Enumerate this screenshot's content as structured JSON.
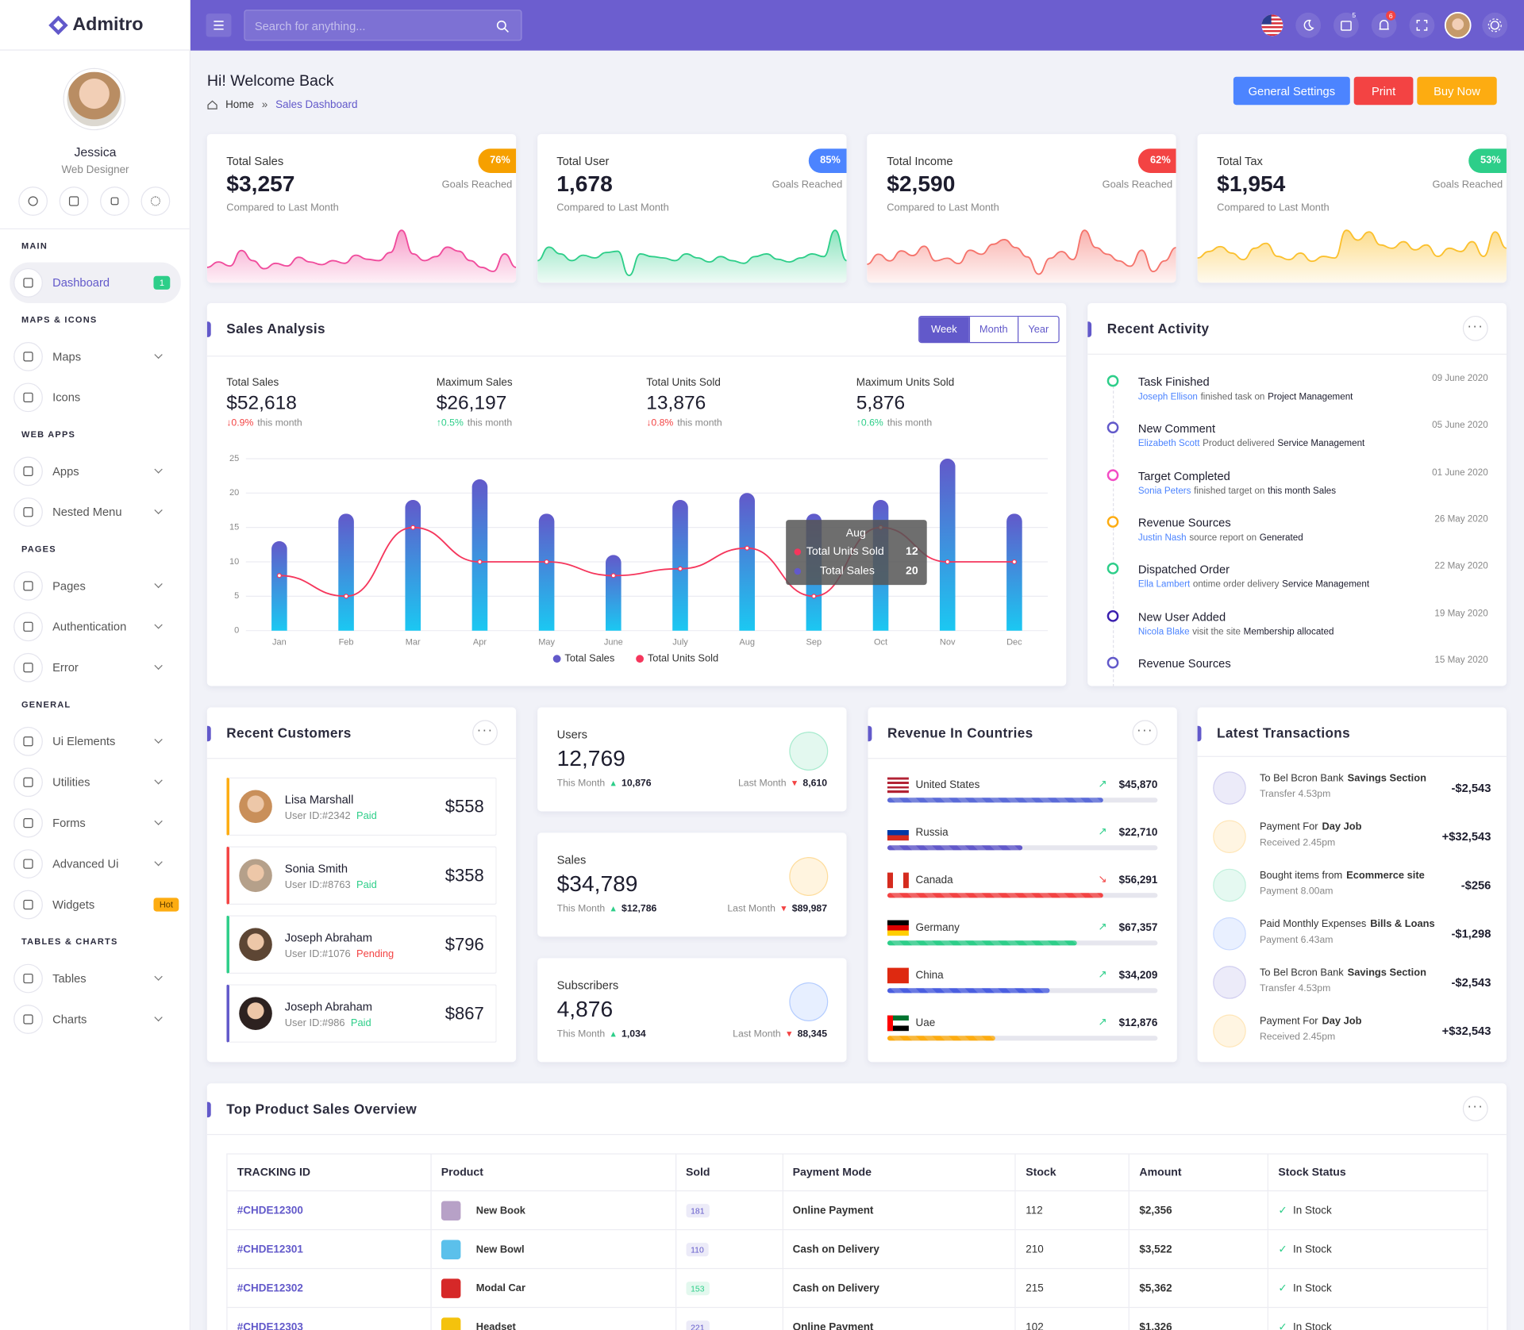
{
  "brand": "Admitro",
  "header": {
    "search_placeholder": "Search for anything...",
    "cart_count": 5,
    "notification_count": 6
  },
  "profile": {
    "name": "Jessica",
    "role": "Web Designer"
  },
  "sidebar": [
    {
      "heading": "MAIN",
      "items": [
        {
          "label": "Dashboard",
          "badge": 1,
          "badge_color": "#2dce89",
          "active": true
        }
      ]
    },
    {
      "heading": "MAPS & ICONS",
      "items": [
        {
          "label": "Maps",
          "submenu": true
        },
        {
          "label": "Icons"
        }
      ]
    },
    {
      "heading": "WEB APPS",
      "items": [
        {
          "label": "Apps",
          "submenu": true
        },
        {
          "label": "Nested Menu",
          "submenu": true
        }
      ]
    },
    {
      "heading": "PAGES",
      "items": [
        {
          "label": "Pages",
          "submenu": true
        },
        {
          "label": "Authentication",
          "submenu": true
        },
        {
          "label": "Error",
          "submenu": true
        }
      ]
    },
    {
      "heading": "GENERAL",
      "items": [
        {
          "label": "Ui Elements",
          "submenu": true
        },
        {
          "label": "Utilities",
          "submenu": true
        },
        {
          "label": "Forms",
          "submenu": true
        },
        {
          "label": "Advanced Ui",
          "submenu": true
        },
        {
          "label": "Widgets",
          "badge": "Hot",
          "badge_color": "#fdac11"
        }
      ]
    },
    {
      "heading": "TABLES & CHARTS",
      "items": [
        {
          "label": "Tables",
          "submenu": true
        },
        {
          "label": "Charts",
          "submenu": true
        }
      ]
    }
  ],
  "page": {
    "title": "Hi! Welcome Back",
    "breadcrumb": [
      "Home",
      "Sales Dashboard"
    ],
    "buttons": [
      {
        "label": "General Settings",
        "color": "#4c84ff"
      },
      {
        "label": "Print",
        "color": "#f34343"
      },
      {
        "label": "Buy Now",
        "color": "#fdac11"
      }
    ]
  },
  "stat_cards": [
    {
      "label": "Total Sales",
      "value": "$3,257",
      "badge": "76%",
      "goal": "Goals Reached",
      "note": "Compared to Last Month",
      "color": "#f6a000",
      "line_color": "#f04b9c",
      "sparkline": [
        20,
        28,
        22,
        45,
        30,
        18,
        26,
        22,
        35,
        28,
        24,
        30,
        26,
        38,
        32,
        30,
        42,
        75,
        40,
        30,
        36,
        50,
        44,
        30,
        20,
        14,
        40,
        20
      ]
    },
    {
      "label": "Total User",
      "value": "1,678",
      "badge": "85%",
      "goal": "Goals Reached",
      "note": "Compared to Last Month",
      "color": "#4c84ff",
      "line_color": "#2dce89",
      "sparkline": [
        30,
        50,
        40,
        30,
        38,
        34,
        42,
        44,
        8,
        40,
        36,
        34,
        30,
        40,
        34,
        28,
        36,
        30,
        26,
        36,
        40,
        32,
        28,
        34,
        40,
        36,
        75,
        30
      ]
    },
    {
      "label": "Total Income",
      "value": "$2,590",
      "badge": "62%",
      "goal": "Goals Reached",
      "note": "Compared to Last Month",
      "color": "#f34343",
      "line_color": "#f5736b",
      "sparkline": [
        25,
        40,
        30,
        45,
        38,
        52,
        30,
        34,
        26,
        46,
        40,
        55,
        62,
        50,
        36,
        10,
        34,
        44,
        32,
        76,
        50,
        40,
        30,
        22,
        46,
        14,
        30,
        50
      ]
    },
    {
      "label": "Total Tax",
      "value": "$1,954",
      "badge": "53%",
      "goal": "Goals Reached",
      "note": "Compared to Last Month",
      "color": "#2dce89",
      "line_color": "#fbc02d",
      "sparkline": [
        28,
        36,
        42,
        34,
        26,
        40,
        46,
        30,
        26,
        34,
        24,
        30,
        28,
        62,
        50,
        60,
        44,
        40,
        48,
        38,
        44,
        30,
        40,
        36,
        48,
        30,
        60,
        40
      ]
    }
  ],
  "sales_analysis": {
    "title": "Sales Analysis",
    "tabs": [
      "Week",
      "Month",
      "Year"
    ],
    "active_tab": 0,
    "kpis": [
      {
        "label": "Total Sales",
        "value": "$52,618",
        "change": "0.9%",
        "trend": "down",
        "note": "this month"
      },
      {
        "label": "Maximum Sales",
        "value": "$26,197",
        "change": "0.5%",
        "trend": "up",
        "note": "this month"
      },
      {
        "label": "Total Units Sold",
        "value": "13,876",
        "change": "0.8%",
        "trend": "down",
        "note": "this month"
      },
      {
        "label": "Maximum Units Sold",
        "value": "5,876",
        "change": "0.6%",
        "trend": "up",
        "note": "this month"
      }
    ]
  },
  "chart_data": {
    "type": "bar",
    "categories": [
      "Jan",
      "Feb",
      "Mar",
      "Apr",
      "May",
      "June",
      "July",
      "Aug",
      "Sep",
      "Oct",
      "Nov",
      "Dec"
    ],
    "series": [
      {
        "name": "Total Sales",
        "type": "bar",
        "color": "#6259ca",
        "values": [
          13,
          17,
          19,
          22,
          17,
          11,
          19,
          20,
          17,
          19,
          25,
          17
        ]
      },
      {
        "name": "Total Units Sold",
        "type": "line",
        "color": "#f5365c",
        "values": [
          8,
          5,
          15,
          10,
          10,
          8,
          9,
          12,
          5,
          15,
          10,
          10
        ]
      }
    ],
    "ylim": [
      0,
      25
    ],
    "yticks": [
      0,
      5,
      10,
      15,
      20,
      25
    ],
    "grid": true,
    "legend": "bottom",
    "tooltip_index": 7
  },
  "recent_activity": {
    "title": "Recent Activity",
    "items": [
      {
        "title": "Task Finished",
        "person": "Joseph Ellison",
        "text": "finished task on",
        "target": "Project Management",
        "date": "09 June 2020",
        "color": "#2dce89"
      },
      {
        "title": "New Comment",
        "person": "Elizabeth Scott",
        "text": "Product delivered",
        "target": "Service Management",
        "date": "05 June 2020",
        "color": "#6259ca"
      },
      {
        "title": "Target Completed",
        "person": "Sonia Peters",
        "text": "finished target on",
        "target": "this month Sales",
        "date": "01 June 2020",
        "color": "#f34cc4"
      },
      {
        "title": "Revenue Sources",
        "person": "Justin Nash",
        "text": "source report on",
        "target": "Generated",
        "date": "26 May 2020",
        "color": "#fdac11"
      },
      {
        "title": "Dispatched Order",
        "person": "Ella Lambert",
        "text": "ontime order delivery",
        "target": "Service Management",
        "date": "22 May 2020",
        "color": "#2dce89"
      },
      {
        "title": "New User Added",
        "person": "Nicola Blake",
        "text": "visit the site",
        "target": "Membership allocated",
        "date": "19 May 2020",
        "color": "#3a1fae"
      },
      {
        "title": "Revenue Sources",
        "date": "15 May 2020",
        "color": "#6259ca"
      }
    ]
  },
  "recent_customers": {
    "title": "Recent Customers",
    "items": [
      {
        "name": "Lisa Marshall",
        "user_id": "User ID:#2342",
        "status": "Paid",
        "amount": "$558",
        "color": "#fdac11"
      },
      {
        "name": "Sonia Smith",
        "user_id": "User ID:#8763",
        "status": "Paid",
        "amount": "$358",
        "color": "#f34343"
      },
      {
        "name": "Joseph Abraham",
        "user_id": "User ID:#1076",
        "status": "Pending",
        "amount": "$796",
        "color": "#2dce89"
      },
      {
        "name": "Joseph Abraham",
        "user_id": "User ID:#986",
        "status": "Paid",
        "amount": "$867",
        "color": "#6259ca"
      }
    ]
  },
  "mini_stats": [
    {
      "label": "Users",
      "value": "12,769",
      "this_label": "This Month",
      "this_value": "10,876",
      "last_label": "Last Month",
      "last_value": "8,610",
      "color": "#2dce89"
    },
    {
      "label": "Sales",
      "value": "$34,789",
      "this_label": "This Month",
      "this_value": "$12,786",
      "last_label": "Last Month",
      "last_value": "$89,987",
      "color": "#fdac11"
    },
    {
      "label": "Subscribers",
      "value": "4,876",
      "this_label": "This Month",
      "this_value": "1,034",
      "last_label": "Last Month",
      "last_value": "88,345",
      "color": "#4c84ff"
    }
  ],
  "revenue_countries": {
    "title": "Revenue In Countries",
    "items": [
      {
        "country": "United States",
        "amount": "$45,870",
        "trend": "up",
        "percent": 80,
        "color": "#5b6bd8"
      },
      {
        "country": "Russia",
        "amount": "$22,710",
        "trend": "up",
        "percent": 50,
        "color": "#6259ca"
      },
      {
        "country": "Canada",
        "amount": "$56,291",
        "trend": "down",
        "percent": 80,
        "color": "#f34343"
      },
      {
        "country": "Germany",
        "amount": "$67,357",
        "trend": "up",
        "percent": 70,
        "color": "#2dce89"
      },
      {
        "country": "China",
        "amount": "$34,209",
        "trend": "up",
        "percent": 60,
        "color": "#4a5ee0"
      },
      {
        "country": "Uae",
        "amount": "$12,876",
        "trend": "up",
        "percent": 40,
        "color": "#fdac11"
      }
    ]
  },
  "latest_transactions": {
    "title": "Latest Transactions",
    "items": [
      {
        "text": "To Bel Bcron Bank",
        "bold": "Savings Section",
        "sub": "Transfer 4.53pm",
        "amount": "-$2,543",
        "color": "#6259ca"
      },
      {
        "text": "Payment For",
        "bold": "Day Job",
        "sub": "Received 2.45pm",
        "amount": "+$32,543",
        "color": "#fdac11"
      },
      {
        "text": "Bought items from",
        "bold": "Ecommerce site",
        "sub": "Payment 8.00am",
        "amount": "-$256",
        "color": "#2dce89"
      },
      {
        "text": "Paid Monthly Expenses",
        "bold": "Bills & Loans",
        "sub": "Payment 6.43am",
        "amount": "-$1,298",
        "color": "#4c84ff"
      },
      {
        "text": "To Bel Bcron Bank",
        "bold": "Savings Section",
        "sub": "Transfer 4.53pm",
        "amount": "-$2,543",
        "color": "#6259ca"
      },
      {
        "text": "Payment For",
        "bold": "Day Job",
        "sub": "Received 2.45pm",
        "amount": "+$32,543",
        "color": "#fdac11"
      }
    ]
  },
  "top_products": {
    "title": "Top Product Sales Overview",
    "columns": [
      "TRACKING ID",
      "Product",
      "Sold",
      "Payment Mode",
      "Stock",
      "Amount",
      "Stock Status"
    ],
    "rows": [
      [
        "#CHDE12300",
        "New Book",
        "181",
        "Online Payment",
        "112",
        "$2,356",
        "In Stock"
      ],
      [
        "#CHDE12301",
        "New Bowl",
        "110",
        "Cash on Delivery",
        "210",
        "$3,522",
        "In Stock"
      ],
      [
        "#CHDE12302",
        "Modal Car",
        "153",
        "Cash on Delivery",
        "215",
        "$5,362",
        "In Stock"
      ],
      [
        "#CHDE12303",
        "Headset",
        "221",
        "Online Payment",
        "102",
        "$1,326",
        "In Stock"
      ]
    ]
  }
}
